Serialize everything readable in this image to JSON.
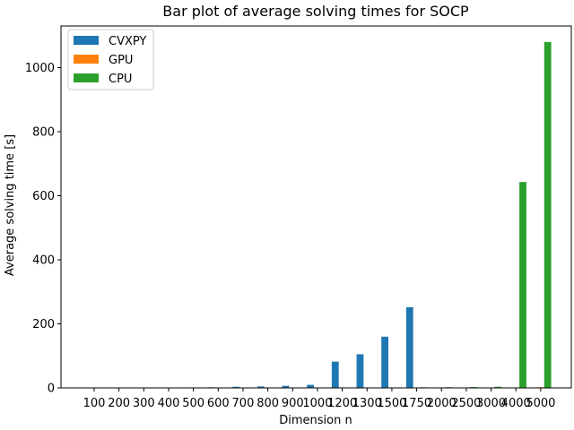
{
  "chart_data": {
    "type": "bar",
    "title": "Bar plot of average solving times for SOCP",
    "xlabel": "Dimension n",
    "ylabel": "Average solving time [s]",
    "categories": [
      "100",
      "200",
      "300",
      "400",
      "500",
      "600",
      "700",
      "800",
      "900",
      "1000",
      "1200",
      "1300",
      "1500",
      "1750",
      "2000",
      "2500",
      "3000",
      "4000",
      "5000"
    ],
    "series": [
      {
        "name": "CVXPY",
        "color": "#1f77b4",
        "values": [
          0.5,
          0.8,
          1.0,
          1.3,
          1.6,
          2.0,
          3.5,
          4.5,
          6.5,
          9.5,
          82,
          105,
          160,
          252,
          null,
          null,
          null,
          null,
          null
        ]
      },
      {
        "name": "GPU",
        "color": "#ff7f0e",
        "values": [
          0.2,
          0.3,
          0.3,
          0.4,
          0.4,
          0.4,
          0.5,
          0.5,
          0.5,
          0.6,
          0.6,
          0.7,
          0.7,
          0.8,
          0.9,
          1.0,
          1.2,
          1.5,
          2.0
        ]
      },
      {
        "name": "CPU",
        "color": "#2ca02c",
        "values": [
          0.1,
          0.2,
          0.3,
          0.4,
          0.5,
          0.6,
          0.7,
          0.8,
          0.9,
          1.0,
          1.2,
          1.4,
          1.6,
          1.9,
          2.2,
          2.6,
          3.5,
          643,
          1080
        ]
      }
    ],
    "ylim": [
      0,
      1130
    ],
    "yticks": [
      0,
      200,
      400,
      600,
      800,
      1000
    ],
    "legend": "top-left",
    "grid": false
  }
}
